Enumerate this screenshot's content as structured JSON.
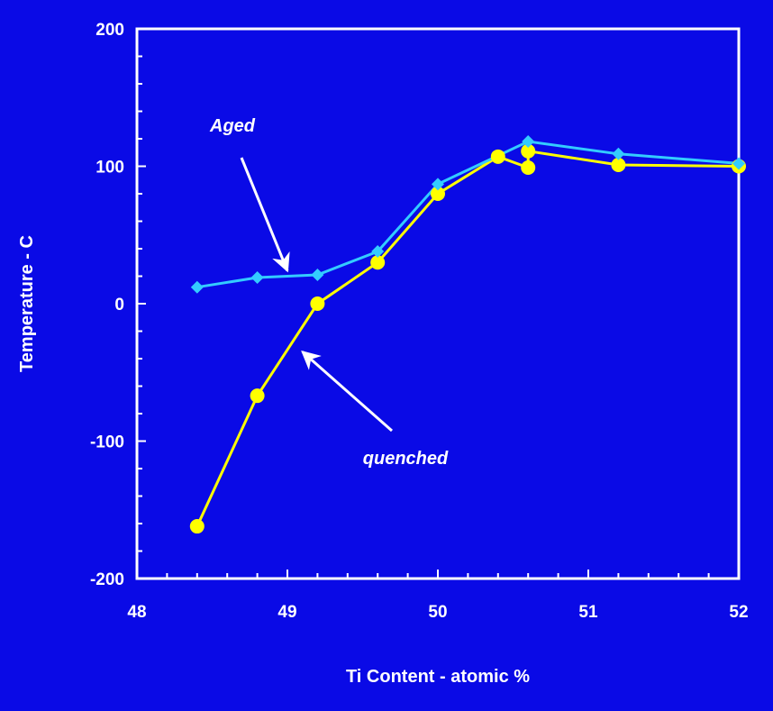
{
  "chart_data": {
    "type": "line",
    "title": "",
    "xlabel": "Ti  Content  -  atomic  %",
    "ylabel": "Temperature   -   C",
    "xlim": [
      48,
      52
    ],
    "ylim": [
      -200,
      200
    ],
    "x_ticks": [
      "48",
      "49",
      "50",
      "51",
      "52"
    ],
    "y_ticks": [
      "200",
      "100",
      "0",
      "-100",
      "-200"
    ],
    "grid": false,
    "legend": "none",
    "series": [
      {
        "name": "Aged",
        "color": "#33ccff",
        "marker": "diamond",
        "x": [
          48.4,
          48.8,
          49.2,
          49.6,
          50.0,
          50.6,
          51.2,
          52.0
        ],
        "y": [
          12,
          19,
          21,
          38,
          87,
          118,
          109,
          102
        ]
      },
      {
        "name": "quenched",
        "color": "#ffff00",
        "marker": "circle",
        "x": [
          48.4,
          48.8,
          49.2,
          49.6,
          50.0,
          50.4,
          50.6,
          50.6,
          51.2,
          52.0
        ],
        "y": [
          -162,
          -67,
          0,
          30,
          80,
          107,
          99,
          111,
          101,
          100
        ]
      }
    ],
    "annotations": [
      {
        "text": "Aged",
        "points_to_series": "Aged",
        "at_x": 49.0,
        "at_y": 24
      },
      {
        "text": "quenched",
        "points_to_series": "quenched",
        "at_x": 49.1,
        "at_y": -35
      }
    ]
  }
}
